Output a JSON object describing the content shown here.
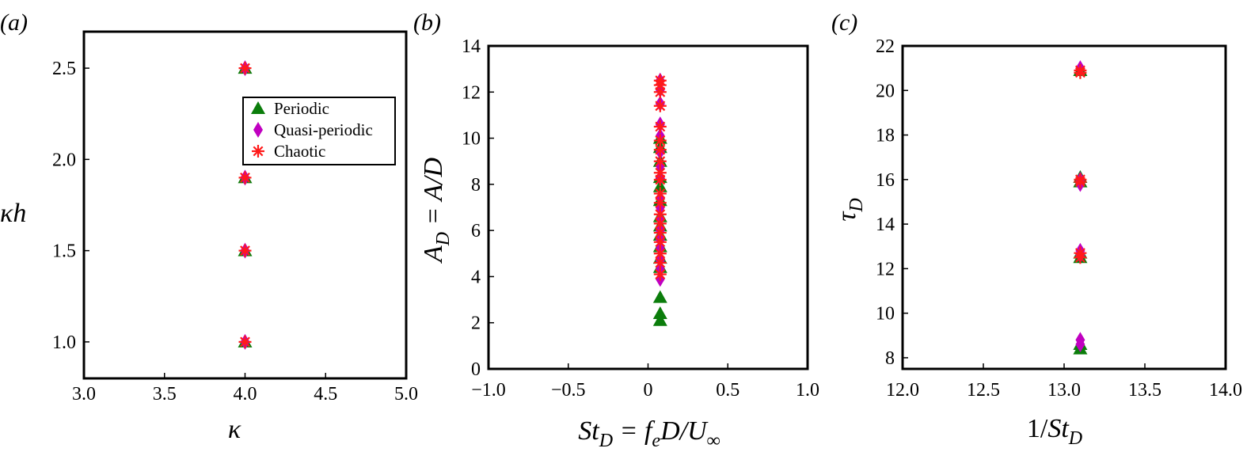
{
  "legend_entries": [
    {
      "label": "Periodic",
      "marker": "triangle",
      "color": "#0b7d0b"
    },
    {
      "label": "Quasi-periodic",
      "marker": "diamond",
      "color": "#c000c0"
    },
    {
      "label": "Chaotic",
      "marker": "asterisk",
      "color": "#ff1a1a"
    }
  ],
  "chart_data": [
    {
      "type": "scatter",
      "panel_label": "(a)",
      "xlabel": "κ",
      "ylabel": "κh",
      "xlim": [
        3.0,
        5.0
      ],
      "ylim": [
        0.8,
        2.7
      ],
      "xticks": [
        "3.0",
        "3.5",
        "4.0",
        "4.5",
        "5.0"
      ],
      "yticks": [
        "1.0",
        "1.5",
        "2.0",
        "2.5"
      ],
      "legend_position": "top-right",
      "series": [
        {
          "name": "Periodic",
          "x": [
            4.0,
            4.0,
            4.0,
            4.0
          ],
          "y": [
            1.0,
            1.5,
            1.9,
            2.5
          ]
        },
        {
          "name": "Quasi-periodic",
          "x": [
            4.0,
            4.0,
            4.0,
            4.0
          ],
          "y": [
            1.0,
            1.5,
            1.9,
            2.5
          ]
        },
        {
          "name": "Chaotic",
          "x": [
            4.0,
            4.0,
            4.0,
            4.0
          ],
          "y": [
            1.0,
            1.5,
            1.9,
            2.5
          ]
        }
      ]
    },
    {
      "type": "scatter",
      "panel_label": "(b)",
      "xlabel": "St_D = f_e D/U_∞",
      "ylabel": "A_D = A/D",
      "xlim": [
        -1.0,
        1.0
      ],
      "ylim": [
        0,
        14
      ],
      "xticks": [
        "−1.0",
        "−0.5",
        "0",
        "0.5",
        "1.0"
      ],
      "yticks": [
        "0",
        "2",
        "4",
        "6",
        "8",
        "10",
        "12",
        "14"
      ],
      "series": [
        {
          "name": "Periodic",
          "x": [
            0.076,
            0.076,
            0.076,
            0.076,
            0.076,
            0.076,
            0.076,
            0.076,
            0.076,
            0.076,
            0.076,
            0.076,
            0.076,
            0.076,
            0.076
          ],
          "y": [
            2.1,
            2.4,
            3.1,
            4.4,
            4.8,
            5.3,
            5.8,
            6.2,
            6.6,
            7.3,
            7.9,
            8.3,
            9.0,
            9.6,
            10.0
          ]
        },
        {
          "name": "Quasi-periodic",
          "x": [
            0.076,
            0.076,
            0.076,
            0.076,
            0.076,
            0.076,
            0.076,
            0.076,
            0.076,
            0.076,
            0.076,
            0.076,
            0.076,
            0.076,
            0.076,
            0.076,
            0.076
          ],
          "y": [
            3.9,
            4.3,
            4.7,
            5.2,
            5.6,
            6.0,
            6.5,
            7.0,
            7.4,
            8.3,
            8.8,
            9.4,
            10.1,
            10.6,
            11.5,
            12.1,
            12.5
          ]
        },
        {
          "name": "Chaotic",
          "x": [
            0.076,
            0.076,
            0.076,
            0.076,
            0.076,
            0.076,
            0.076,
            0.076,
            0.076,
            0.076,
            0.076,
            0.076,
            0.076,
            0.076,
            0.076,
            0.076,
            0.076,
            0.076,
            0.076
          ],
          "y": [
            4.1,
            4.6,
            5.0,
            5.5,
            5.9,
            6.3,
            6.7,
            7.2,
            7.6,
            8.2,
            8.5,
            9.0,
            9.5,
            9.9,
            10.5,
            11.4,
            12.0,
            12.3,
            12.5
          ]
        }
      ]
    },
    {
      "type": "scatter",
      "panel_label": "(c)",
      "xlabel": "1/St_D",
      "ylabel": "τ_D",
      "xlim": [
        12.0,
        14.0
      ],
      "ylim": [
        7.5,
        22
      ],
      "xticks": [
        "12.0",
        "12.5",
        "13.0",
        "13.5",
        "14.0"
      ],
      "yticks": [
        "8",
        "10",
        "12",
        "14",
        "16",
        "18",
        "20",
        "22"
      ],
      "series": [
        {
          "name": "Periodic",
          "x": [
            13.1,
            13.1,
            13.1,
            13.1,
            13.1,
            13.1,
            13.1
          ],
          "y": [
            8.4,
            8.6,
            12.5,
            12.7,
            15.9,
            16.1,
            20.9
          ]
        },
        {
          "name": "Quasi-periodic",
          "x": [
            13.1,
            13.1,
            13.1,
            13.1,
            13.1,
            13.1,
            13.1
          ],
          "y": [
            8.6,
            8.8,
            12.6,
            12.8,
            15.8,
            16.0,
            21.0
          ]
        },
        {
          "name": "Chaotic",
          "x": [
            13.1,
            13.1,
            13.1,
            13.1,
            13.1,
            13.1
          ],
          "y": [
            12.5,
            12.7,
            15.9,
            16.0,
            20.8,
            20.9
          ]
        }
      ]
    }
  ]
}
